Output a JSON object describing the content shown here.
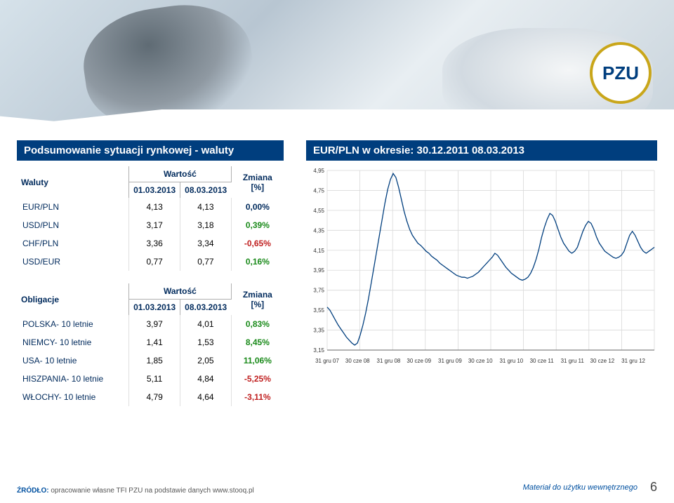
{
  "brand": {
    "text": "PZU",
    "text_color": "#003e7e",
    "ring_color": "#c9a61a"
  },
  "section_titles": {
    "left": "Podsumowanie sytuacji rynkowej - waluty",
    "right": "EUR/PLN w okresie: 30.12.2011 08.03.2013"
  },
  "currencies": {
    "header_row_label": "Waluty",
    "wartosc_label": "Wartość",
    "zmiana_label": "Zmiana [%]",
    "date1": "01.03.2013",
    "date2": "08.03.2013",
    "rows": [
      {
        "name": "EUR/PLN",
        "v1": "4,13",
        "v2": "4,13",
        "chg": "0,00%",
        "cls": "zero"
      },
      {
        "name": "USD/PLN",
        "v1": "3,17",
        "v2": "3,18",
        "chg": "0,39%",
        "cls": "pos"
      },
      {
        "name": "CHF/PLN",
        "v1": "3,36",
        "v2": "3,34",
        "chg": "-0,65%",
        "cls": "neg"
      },
      {
        "name": "USD/EUR",
        "v1": "0,77",
        "v2": "0,77",
        "chg": "0,16%",
        "cls": "pos"
      }
    ]
  },
  "bonds": {
    "header_row_label": "Obligacje",
    "wartosc_label": "Wartość",
    "zmiana_label": "Zmiana [%]",
    "date1": "01.03.2013",
    "date2": "08.03.2013",
    "rows": [
      {
        "name": "POLSKA- 10 letnie",
        "v1": "3,97",
        "v2": "4,01",
        "chg": "0,83%",
        "cls": "pos"
      },
      {
        "name": "NIEMCY- 10 letnie",
        "v1": "1,41",
        "v2": "1,53",
        "chg": "8,45%",
        "cls": "pos"
      },
      {
        "name": "USA- 10 letnie",
        "v1": "1,85",
        "v2": "2,05",
        "chg": "11,06%",
        "cls": "pos"
      },
      {
        "name": "HISZPANIA- 10 letnie",
        "v1": "5,11",
        "v2": "4,84",
        "chg": "-5,25%",
        "cls": "neg"
      },
      {
        "name": "WŁOCHY- 10 letnie",
        "v1": "4,79",
        "v2": "4,64",
        "chg": "-3,11%",
        "cls": "neg"
      }
    ]
  },
  "chart": {
    "type": "line",
    "ylim": [
      3.15,
      4.95
    ],
    "ytick_step": 0.2,
    "yticks": [
      "4,95",
      "4,75",
      "4,55",
      "4,35",
      "4,15",
      "3,95",
      "3,75",
      "3,55",
      "3,35",
      "3,15"
    ],
    "xlabels": [
      "31 gru 07",
      "30 cze 08",
      "31 gru 08",
      "30 cze 09",
      "31 gru 09",
      "30 cze 10",
      "31 gru 10",
      "30 cze 11",
      "31 gru 11",
      "30 cze 12",
      "31 gru 12"
    ],
    "line_color": "#003e7e",
    "grid_color": "#d9d9d9",
    "axis_color": "#666666",
    "background_color": "#ffffff",
    "label_fontsize": 8,
    "line_width": 1.3,
    "series": [
      3.58,
      3.55,
      3.5,
      3.45,
      3.4,
      3.36,
      3.32,
      3.28,
      3.25,
      3.22,
      3.2,
      3.22,
      3.3,
      3.4,
      3.52,
      3.66,
      3.82,
      3.98,
      4.14,
      4.3,
      4.46,
      4.62,
      4.76,
      4.86,
      4.92,
      4.88,
      4.78,
      4.66,
      4.54,
      4.44,
      4.36,
      4.3,
      4.26,
      4.22,
      4.2,
      4.17,
      4.14,
      4.12,
      4.09,
      4.07,
      4.05,
      4.02,
      4.0,
      3.98,
      3.96,
      3.94,
      3.92,
      3.9,
      3.89,
      3.88,
      3.88,
      3.87,
      3.88,
      3.89,
      3.91,
      3.93,
      3.96,
      3.99,
      4.02,
      4.05,
      4.08,
      4.12,
      4.1,
      4.06,
      4.02,
      3.98,
      3.95,
      3.92,
      3.9,
      3.88,
      3.86,
      3.85,
      3.86,
      3.88,
      3.92,
      3.98,
      4.06,
      4.16,
      4.28,
      4.38,
      4.46,
      4.52,
      4.5,
      4.44,
      4.36,
      4.28,
      4.22,
      4.18,
      4.14,
      4.12,
      4.14,
      4.18,
      4.26,
      4.34,
      4.4,
      4.44,
      4.42,
      4.36,
      4.28,
      4.22,
      4.18,
      4.14,
      4.12,
      4.1,
      4.08,
      4.07,
      4.08,
      4.1,
      4.14,
      4.22,
      4.3,
      4.34,
      4.3,
      4.24,
      4.18,
      4.14,
      4.12,
      4.14,
      4.16,
      4.18
    ]
  },
  "footer": {
    "src_prefix": "ŹRÓDŁO:",
    "src_text": " opracowanie własne TFI PZU na podstawie danych www.stooq.pl",
    "internal": "Materiał do użytku wewnętrznego",
    "page": "6"
  }
}
